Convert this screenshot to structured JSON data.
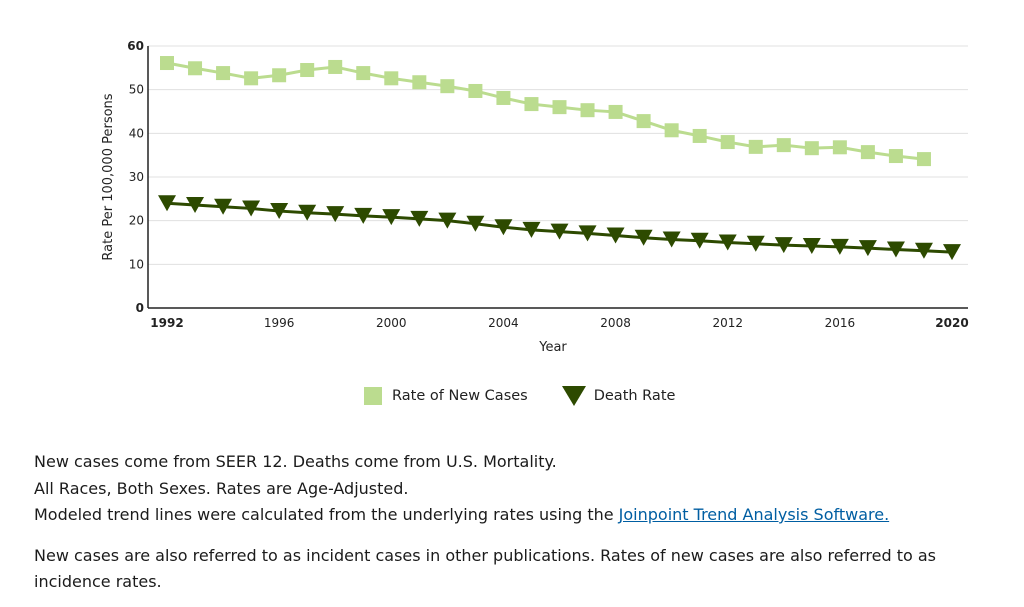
{
  "chart_data": {
    "type": "line",
    "xlabel": "Year",
    "ylabel": "Rate Per 100,000 Persons",
    "ylim": [
      0,
      60
    ],
    "yticks": [
      "0",
      "10",
      "20",
      "30",
      "40",
      "50",
      "60"
    ],
    "xlim": [
      1992,
      2020
    ],
    "xticks": [
      "1992",
      "1996",
      "2000",
      "2004",
      "2008",
      "2012",
      "2016",
      "2020"
    ],
    "grid": true,
    "legend_placement": "bottom",
    "x": [
      1992,
      1993,
      1994,
      1995,
      1996,
      1997,
      1998,
      1999,
      2000,
      2001,
      2002,
      2003,
      2004,
      2005,
      2006,
      2007,
      2008,
      2009,
      2010,
      2011,
      2012,
      2013,
      2014,
      2015,
      2016,
      2017,
      2018,
      2019,
      2020
    ],
    "series": [
      {
        "name": "Rate of New Cases",
        "color": "#bbdc8f",
        "marker": "square",
        "values": [
          56.1,
          54.9,
          53.8,
          52.6,
          53.3,
          54.5,
          55.2,
          53.8,
          52.6,
          51.7,
          50.8,
          49.7,
          48.1,
          46.7,
          46.0,
          45.3,
          44.9,
          42.8,
          40.7,
          39.4,
          38.0,
          36.9,
          37.3,
          36.6,
          36.8,
          35.7,
          34.8,
          34.1,
          null
        ]
      },
      {
        "name": "Death Rate",
        "color": "#2d4a00",
        "marker": "triangle-down",
        "values": [
          24.0,
          23.6,
          23.2,
          22.8,
          22.2,
          21.8,
          21.5,
          21.1,
          20.8,
          20.4,
          20.0,
          19.3,
          18.5,
          17.9,
          17.5,
          17.1,
          16.6,
          16.1,
          15.7,
          15.4,
          15.0,
          14.7,
          14.4,
          14.2,
          14.0,
          13.7,
          13.4,
          13.1,
          12.8
        ]
      }
    ]
  },
  "notes": {
    "line1": "New cases come from SEER 12. Deaths come from U.S. Mortality.",
    "line2": "All Races, Both Sexes. Rates are Age-Adjusted.",
    "line3": "Modeled trend lines were calculated from the underlying rates using the ",
    "link": "Joinpoint Trend Analysis Software.",
    "line4": "New cases are also referred to as incident cases in other publications. Rates of new cases are also referred to as incidence rates."
  }
}
